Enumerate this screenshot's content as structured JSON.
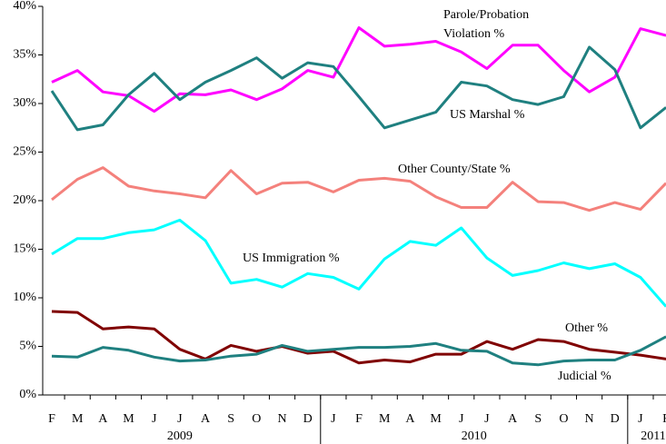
{
  "chart_data": {
    "type": "line",
    "categories": [
      "F",
      "M",
      "A",
      "M",
      "J",
      "J",
      "A",
      "S",
      "O",
      "N",
      "D",
      "J",
      "F",
      "M",
      "A",
      "M",
      "J",
      "J",
      "A",
      "S",
      "O",
      "N",
      "D",
      "J",
      "F"
    ],
    "x_groups": [
      {
        "label": "2009",
        "count": 11
      },
      {
        "label": "2010",
        "count": 12
      },
      {
        "label": "2011",
        "count": 2
      }
    ],
    "ylim": [
      0,
      40
    ],
    "yticks": [
      {
        "value": 0,
        "label": "0%"
      },
      {
        "value": 5,
        "label": "5%"
      },
      {
        "value": 10,
        "label": "10%"
      },
      {
        "value": 15,
        "label": "15%"
      },
      {
        "value": 20,
        "label": "20%"
      },
      {
        "value": 25,
        "label": "25%"
      },
      {
        "value": 30,
        "label": "30%"
      },
      {
        "value": 35,
        "label": "35%"
      },
      {
        "value": 40,
        "label": "40%"
      }
    ],
    "series": [
      {
        "label_lines": [
          "Parole/Probation",
          "Violation %"
        ],
        "color": "#ff00ff",
        "values": [
          32.2,
          33.4,
          31.2,
          30.8,
          29.2,
          31.0,
          30.9,
          31.4,
          30.4,
          31.5,
          33.4,
          32.7,
          37.8,
          35.9,
          36.1,
          36.4,
          35.3,
          33.6,
          36.0,
          36.0,
          33.4,
          31.2,
          32.7,
          37.7,
          37.0
        ]
      },
      {
        "label_lines": [
          "US Marshal %"
        ],
        "color": "#1f8080",
        "values": [
          31.3,
          27.3,
          27.8,
          30.9,
          33.1,
          30.4,
          32.2,
          33.4,
          34.7,
          32.6,
          34.2,
          33.8,
          30.7,
          27.5,
          28.3,
          29.1,
          32.2,
          31.8,
          30.4,
          29.9,
          30.7,
          35.8,
          33.5,
          27.5,
          29.6
        ]
      },
      {
        "label_lines": [
          "Other County/State %"
        ],
        "color": "#f4817c",
        "values": [
          20.1,
          22.2,
          23.4,
          21.5,
          21.0,
          20.7,
          20.3,
          23.1,
          20.7,
          21.8,
          21.9,
          20.9,
          22.1,
          22.3,
          22.0,
          20.4,
          19.3,
          19.3,
          21.9,
          19.9,
          19.8,
          19.0,
          19.8,
          19.1,
          21.8
        ]
      },
      {
        "label_lines": [
          "US Immigration %"
        ],
        "color": "#00ffff",
        "values": [
          14.5,
          16.1,
          16.1,
          16.7,
          17.0,
          18.0,
          15.9,
          11.5,
          11.9,
          11.1,
          12.5,
          12.1,
          10.9,
          14.0,
          15.8,
          15.4,
          17.2,
          14.1,
          12.3,
          12.8,
          13.6,
          13.0,
          13.5,
          12.1,
          9.1
        ]
      },
      {
        "label_lines": [
          "Other %"
        ],
        "color": "#800000",
        "values": [
          8.6,
          8.5,
          6.8,
          7.0,
          6.8,
          4.7,
          3.7,
          5.1,
          4.5,
          5.0,
          4.3,
          4.5,
          3.3,
          3.6,
          3.4,
          4.2,
          4.2,
          5.5,
          4.7,
          5.7,
          5.5,
          4.7,
          4.4,
          4.1,
          3.7
        ]
      },
      {
        "label_lines": [
          "Judicial %"
        ],
        "color": "#1f8080",
        "values": [
          4.0,
          3.9,
          4.9,
          4.6,
          3.9,
          3.5,
          3.6,
          4.0,
          4.2,
          5.1,
          4.5,
          4.7,
          4.9,
          4.9,
          5.0,
          5.3,
          4.6,
          4.5,
          3.3,
          3.1,
          3.5,
          3.6,
          3.6,
          4.6,
          6.0
        ]
      }
    ]
  }
}
